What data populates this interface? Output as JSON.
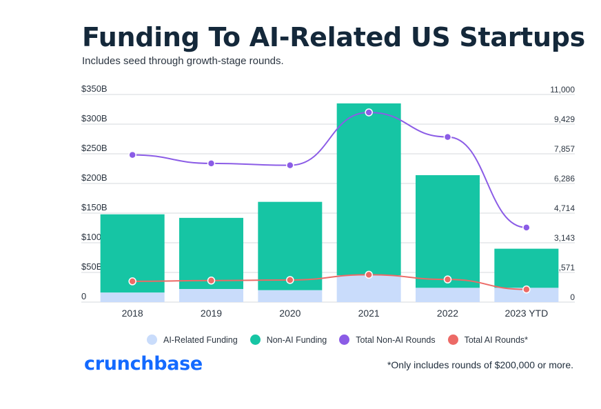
{
  "header": {
    "title": "Funding To AI-Related US Startups",
    "subtitle": "Includes seed through growth-stage rounds."
  },
  "chart_data": {
    "type": "bar",
    "stacked": true,
    "categories": [
      "2018",
      "2019",
      "2020",
      "2021",
      "2022",
      "2023 YTD"
    ],
    "y_left": {
      "ticks": [
        "0",
        "$50B",
        "$100B",
        "$150B",
        "$200B",
        "$250B",
        "$300B",
        "$350B"
      ],
      "ylim": [
        0,
        350
      ]
    },
    "y_right": {
      "ticks": [
        "0",
        "1,571",
        "3,143",
        "4,714",
        "6,286",
        "7,857",
        "9,429",
        "11,000"
      ],
      "ylim": [
        0,
        11000
      ]
    },
    "grid": true,
    "series": [
      {
        "name": "AI-Related Funding",
        "kind": "bar",
        "axis": "left",
        "color": "#c9dcfb",
        "values": [
          16,
          22,
          20,
          45,
          24,
          24
        ]
      },
      {
        "name": "Non-AI Funding",
        "kind": "bar",
        "axis": "left",
        "color": "#16c5a4",
        "values": [
          132,
          120,
          149,
          290,
          190,
          66
        ]
      },
      {
        "name": "Total Non-AI Rounds",
        "kind": "line",
        "axis": "right",
        "color": "#8b5ce6",
        "values": [
          7800,
          7350,
          7250,
          10050,
          8750,
          3950
        ]
      },
      {
        "name": "Total AI Rounds*",
        "kind": "line",
        "axis": "right",
        "color": "#ec6a66",
        "values": [
          1100,
          1140,
          1170,
          1450,
          1200,
          670
        ]
      }
    ]
  },
  "legend": {
    "items": [
      {
        "label": "AI-Related Funding",
        "color": "#c9dcfb"
      },
      {
        "label": "Non-AI Funding",
        "color": "#16c5a4"
      },
      {
        "label": "Total Non-AI Rounds",
        "color": "#8b5ce6"
      },
      {
        "label": "Total AI Rounds*",
        "color": "#ec6a66"
      }
    ]
  },
  "footer": {
    "logo": "crunchbase",
    "footnote": "*Only includes rounds of $200,000 or more."
  }
}
